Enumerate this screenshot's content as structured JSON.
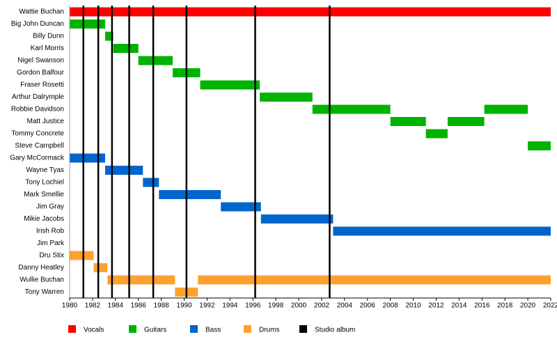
{
  "chart_data": {
    "type": "timeline",
    "categories": [
      "Wattie Buchan",
      "Big John Duncan",
      "Billy Dunn",
      "Karl Morris",
      "Nigel Swanson",
      "Gordon Balfour",
      "Fraser Rosetti",
      "Arthur Dalrymple",
      "Robbie Davidson",
      "Matt Justice",
      "Tommy Concrete",
      "Steve Campbell",
      "Gary McCormack",
      "Wayne Tyas",
      "Tony Lochiel",
      "Mark Smellie",
      "Jim Gray",
      "Mikie Jacobs",
      "Irish Rob",
      "Jim Park",
      "Dru Stix",
      "Danny Heatley",
      "Wullie Buchan",
      "Tony Warren"
    ],
    "series": [
      {
        "name": "Vocals",
        "color": "#ff0000",
        "values": [
          [
            [
              1980,
              2022
            ]
          ],
          null,
          null,
          null,
          null,
          null,
          null,
          null,
          null,
          null,
          null,
          null,
          null,
          null,
          null,
          null,
          null,
          null,
          null,
          null,
          null,
          null,
          null,
          null
        ]
      },
      {
        "name": "Guitars",
        "color": "#00b300",
        "values": [
          null,
          [
            [
              1980,
              1983.1
            ]
          ],
          [
            [
              1983.1,
              1983.8
            ]
          ],
          [
            [
              1983.8,
              1986
            ]
          ],
          [
            [
              1986,
              1989
            ]
          ],
          [
            [
              1989,
              1991.4
            ]
          ],
          [
            [
              1991.4,
              1996.6
            ]
          ],
          [
            [
              1996.6,
              2001.2
            ]
          ],
          [
            [
              2001.2,
              2008
            ],
            [
              2016.2,
              2020
            ]
          ],
          [
            [
              2008,
              2011.1
            ],
            [
              2013,
              2016.2
            ]
          ],
          [
            [
              2011.1,
              2013
            ]
          ],
          [
            [
              2020,
              2022
            ]
          ],
          null,
          null,
          null,
          null,
          null,
          null,
          null,
          null,
          null,
          null,
          null,
          null
        ]
      },
      {
        "name": "Bass",
        "color": "#0066cc",
        "values": [
          null,
          null,
          null,
          null,
          null,
          null,
          null,
          null,
          null,
          null,
          null,
          null,
          [
            [
              1980,
              1983.1
            ]
          ],
          [
            [
              1983.1,
              1986.4
            ]
          ],
          [
            [
              1986.4,
              1987.8
            ]
          ],
          [
            [
              1987.8,
              1993.2
            ]
          ],
          [
            [
              1993.2,
              1996.7
            ]
          ],
          [
            [
              1996.7,
              2003
            ]
          ],
          [
            [
              2003,
              2022
            ]
          ],
          null,
          null,
          null,
          null,
          null
        ]
      },
      {
        "name": "Drums",
        "color": "#ffa030",
        "values": [
          null,
          null,
          null,
          null,
          null,
          null,
          null,
          null,
          null,
          null,
          null,
          null,
          null,
          null,
          null,
          null,
          null,
          null,
          null,
          null,
          [
            [
              1980,
              1982.1
            ]
          ],
          [
            [
              1982.1,
              1983.3
            ]
          ],
          [
            [
              1983.3,
              1989.2
            ],
            [
              1991.2,
              2022
            ]
          ],
          [
            [
              1989.2,
              1991.2
            ]
          ]
        ]
      }
    ],
    "markers": {
      "name": "Studio album",
      "color": "#000000",
      "values": [
        1981.2,
        1982.5,
        1983.7,
        1985.2,
        1987.3,
        1990.2,
        1996.2,
        2002.7
      ]
    },
    "xlim": [
      1980,
      2022
    ],
    "xticks": [
      1980,
      1982,
      1984,
      1986,
      1988,
      1990,
      1992,
      1994,
      1996,
      1998,
      2000,
      2002,
      2004,
      2006,
      2008,
      2010,
      2012,
      2014,
      2016,
      2018,
      2020,
      2022
    ]
  }
}
